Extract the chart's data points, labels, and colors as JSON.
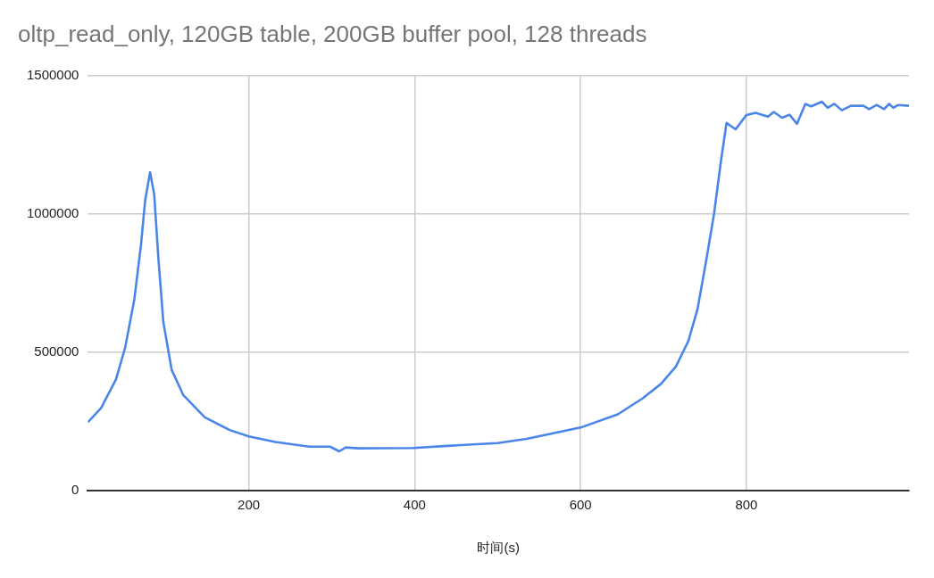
{
  "chart_data": {
    "type": "line",
    "title": "oltp_read_only, 120GB table, 200GB buffer pool, 128 threads",
    "xlabel": "时间(s)",
    "x": [
      6,
      22,
      40,
      51,
      62,
      70,
      75,
      81,
      86,
      91,
      97,
      107,
      121,
      147,
      177,
      200,
      232,
      273,
      298,
      309,
      317,
      332,
      398,
      435,
      470,
      500,
      535,
      600,
      645,
      675,
      697,
      715,
      730,
      741,
      752,
      761,
      769,
      776,
      787,
      800,
      811,
      826,
      833,
      843,
      852,
      861,
      871,
      878,
      891,
      898,
      906,
      915,
      926,
      941,
      948,
      957,
      966,
      972,
      977,
      983,
      996
    ],
    "series": [
      {
        "color": "#4a86e8",
        "values": [
          247000,
          299000,
          403000,
          518000,
          691000,
          887000,
          1048000,
          1152000,
          1071000,
          841000,
          610000,
          437000,
          346000,
          265000,
          219000,
          196000,
          176000,
          159000,
          159000,
          142000,
          156000,
          153000,
          154000,
          161000,
          167000,
          172000,
          187000,
          228000,
          276000,
          334000,
          386000,
          449000,
          541000,
          656000,
          841000,
          1002000,
          1186000,
          1330000,
          1307000,
          1359000,
          1367000,
          1353000,
          1370000,
          1349000,
          1360000,
          1327000,
          1399000,
          1390000,
          1407000,
          1385000,
          1399000,
          1376000,
          1392000,
          1392000,
          1380000,
          1395000,
          1380000,
          1399000,
          1385000,
          1395000,
          1392000
        ]
      }
    ],
    "xlim": [
      6,
      996
    ],
    "xticks": [
      200,
      400,
      600,
      800
    ],
    "ylim": [
      0,
      1500000
    ],
    "yticks": [
      0,
      500000,
      1000000,
      1500000
    ],
    "grid": true,
    "legend": false,
    "marker": "none",
    "line_style": "solid"
  }
}
